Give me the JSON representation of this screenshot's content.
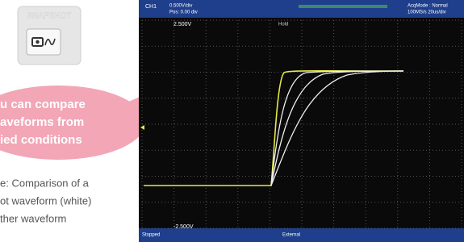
{
  "button": {
    "caption": "SNAPSHOT"
  },
  "bubble": {
    "lines": [
      "u can compare",
      "aveforms from",
      "ied conditions"
    ]
  },
  "caption": {
    "lines": [
      "e: Comparison of a",
      "ot waveform (white)",
      "ther waveform"
    ]
  },
  "scope": {
    "channel": "CH1",
    "top_left": "0.500V/div",
    "top_left_2": "Pos: 0.00 div",
    "acq": "AcqMode : Normal",
    "acq_2": "100MS/s 20us/div",
    "upper_level": "2.500V",
    "lower_level": "-2.500V",
    "status": "Stopped",
    "trigger": "External",
    "hold": "Hold"
  }
}
